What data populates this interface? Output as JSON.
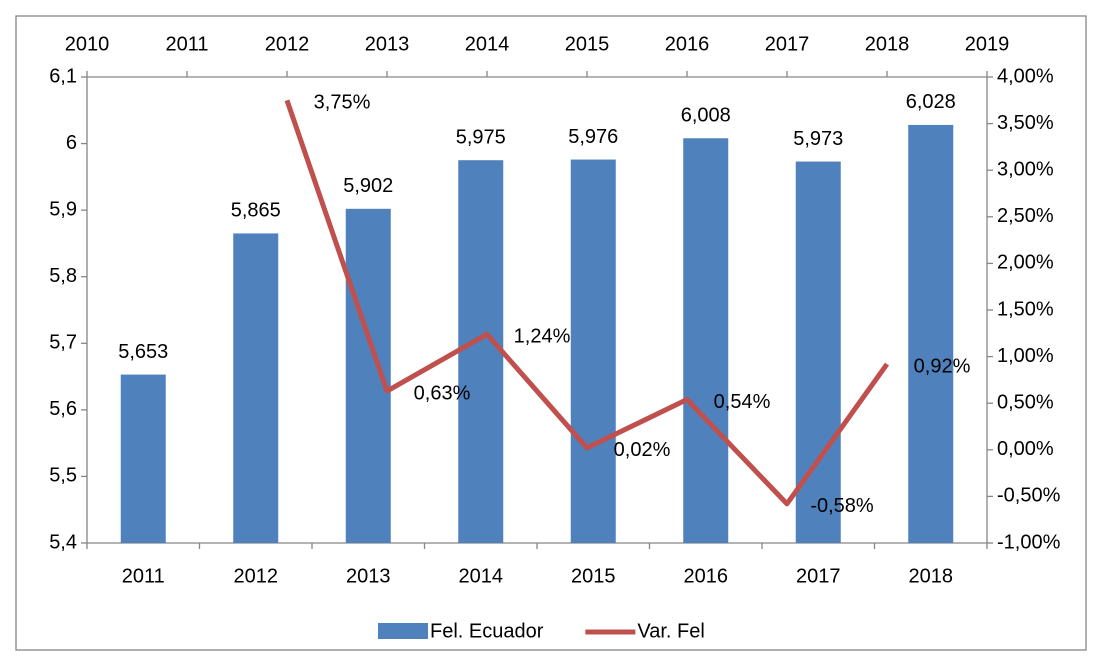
{
  "chart_data": {
    "type": "bar",
    "categories": [
      "2011",
      "2012",
      "2013",
      "2014",
      "2015",
      "2016",
      "2017",
      "2018"
    ],
    "series": [
      {
        "name": "Fel. Ecuador",
        "type": "bar",
        "color": "#4f81bd",
        "values": [
          5.653,
          5.865,
          5.902,
          5.975,
          5.976,
          6.008,
          5.973,
          6.028
        ],
        "value_labels": [
          "5,653",
          "5,865",
          "5,902",
          "5,975",
          "5,976",
          "6,008",
          "5,973",
          "6,028"
        ]
      },
      {
        "name": "Var. Fel",
        "type": "line",
        "color": "#c0504d",
        "axis": "y2",
        "x": [
          2012,
          2013,
          2014,
          2015,
          2016,
          2017,
          2018
        ],
        "values": [
          3.75,
          0.63,
          1.24,
          0.02,
          0.54,
          -0.58,
          0.92
        ],
        "value_labels": [
          "3,75%",
          "0,63%",
          "1,24%",
          "0,02%",
          "0,54%",
          "-0,58%",
          "0,92%"
        ]
      }
    ],
    "ylim": [
      5.4,
      6.1
    ],
    "yticks": [
      {
        "value": 5.4,
        "label": "5,4"
      },
      {
        "value": 5.5,
        "label": "5,5"
      },
      {
        "value": 5.6,
        "label": "5,6"
      },
      {
        "value": 5.7,
        "label": "5,7"
      },
      {
        "value": 5.8,
        "label": "5,8"
      },
      {
        "value": 5.9,
        "label": "5,9"
      },
      6,
      {
        "value": 6.1,
        "label": "6,1"
      }
    ],
    "y2lim": [
      -1,
      4
    ],
    "y2ticks": [
      {
        "value": -1,
        "label": "-1,00%"
      },
      {
        "value": -0.5,
        "label": "-0,50%"
      },
      {
        "value": 0,
        "label": "0,00%"
      },
      {
        "value": 0.5,
        "label": "0,50%"
      },
      {
        "value": 1,
        "label": "1,00%"
      },
      {
        "value": 1.5,
        "label": "1,50%"
      },
      {
        "value": 2,
        "label": "2,00%"
      },
      {
        "value": 2.5,
        "label": "2,50%"
      },
      {
        "value": 3,
        "label": "3,00%"
      },
      {
        "value": 3.5,
        "label": "3,50%"
      },
      {
        "value": 4,
        "label": "4,00%"
      }
    ],
    "x2lim": [
      2010,
      2019
    ],
    "x2ticks": [
      2010,
      2011,
      2012,
      2013,
      2014,
      2015,
      2016,
      2017,
      2018,
      2019
    ],
    "legend": "bottom"
  }
}
